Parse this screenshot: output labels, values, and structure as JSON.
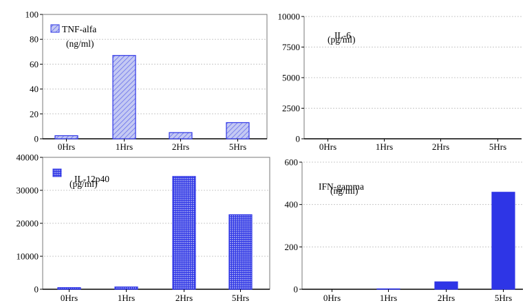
{
  "chart_data": [
    {
      "type": "bar",
      "categories": [
        "0Hrs",
        "1Hrs",
        "2Hrs",
        "5Hrs"
      ],
      "values": [
        2.5,
        67,
        5,
        13
      ],
      "title": "",
      "xlabel": "",
      "ylabel": "",
      "ylim": [
        0,
        100
      ],
      "yticks": [
        0,
        20,
        40,
        60,
        80,
        100
      ],
      "grid": "horizontal dotted",
      "legend": {
        "line1": "TNF-alfa",
        "line2": "(ng/ml)",
        "placement": "top-left"
      },
      "bar_style": "diagonal-hatch",
      "colors": {
        "bar_fill": "#c4c9f3",
        "bar_stroke": "#2e35e6",
        "hatch": "#5a62ea"
      }
    },
    {
      "type": "bar",
      "categories": [
        "0Hrs",
        "1Hrs",
        "2Hrs",
        "5Hrs"
      ],
      "values": [
        0,
        0,
        0,
        0
      ],
      "title": "",
      "xlabel": "",
      "ylabel": "",
      "ylim": [
        0,
        10000
      ],
      "yticks": [
        0,
        2500,
        5000,
        7500,
        10000
      ],
      "grid": "horizontal dotted",
      "legend": {
        "line1": "IL-6",
        "line2": "(pg/ml)",
        "placement": "top-left"
      },
      "bar_style": "solid",
      "colors": {
        "bar_fill": "#2e35e6",
        "bar_stroke": "#2e35e6"
      }
    },
    {
      "type": "bar",
      "categories": [
        "0Hrs",
        "1Hrs",
        "2Hrs",
        "5Hrs"
      ],
      "values": [
        500,
        700,
        34200,
        22600
      ],
      "title": "",
      "xlabel": "",
      "ylabel": "",
      "ylim": [
        0,
        40000
      ],
      "yticks": [
        0,
        10000,
        20000,
        30000,
        40000
      ],
      "grid": "horizontal dotted",
      "legend": {
        "line1": "IL-12p40",
        "line2": "(pg/ml)",
        "placement": "top-left"
      },
      "bar_style": "crosshatch",
      "colors": {
        "bar_fill": "#8f95ef",
        "bar_stroke": "#2e35e6",
        "hatch": "#2e35e6"
      }
    },
    {
      "type": "bar",
      "categories": [
        "0Hrs",
        "1Hrs",
        "2Hrs",
        "5Hrs"
      ],
      "values": [
        0,
        2,
        35,
        458
      ],
      "title": "",
      "xlabel": "",
      "ylabel": "",
      "ylim": [
        0,
        600
      ],
      "yticks": [
        0,
        200,
        400,
        600
      ],
      "grid": "horizontal dotted",
      "legend": {
        "line1": "IFN-gamma",
        "line2": "(ng/ml)",
        "placement": "top-left"
      },
      "bar_style": "solid",
      "colors": {
        "bar_fill": "#2e35e6",
        "bar_stroke": "#2e35e6"
      }
    }
  ]
}
